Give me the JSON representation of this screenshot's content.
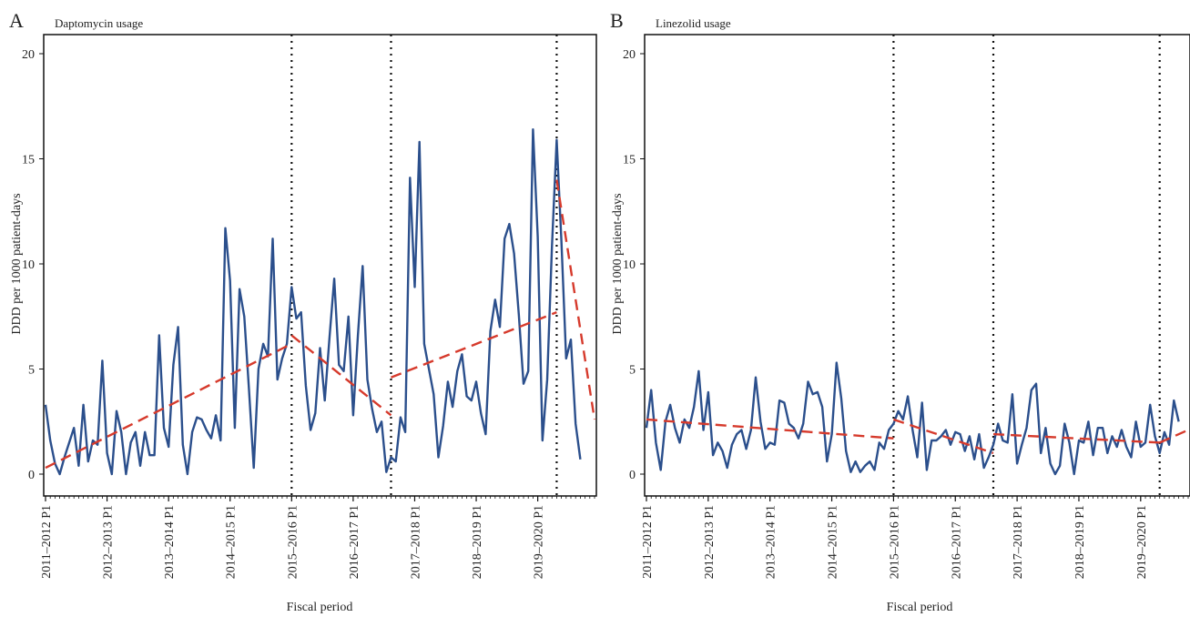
{
  "chart_data": [
    {
      "type": "line",
      "panel_label": "A",
      "title": "Daptomycin usage",
      "xlabel": "Fiscal period",
      "ylabel": "DDD per 1000 patient-days",
      "ylim": [
        0,
        20
      ],
      "y_ticks": [
        0,
        5,
        10,
        15,
        20
      ],
      "x_ticks": [
        {
          "index": 0,
          "label": "2011–2012 P1"
        },
        {
          "index": 13,
          "label": "2012–2013 P1"
        },
        {
          "index": 26,
          "label": "2013–2014 P1"
        },
        {
          "index": 39,
          "label": "2014–2015 P1"
        },
        {
          "index": 52,
          "label": "2015–2016 P1"
        },
        {
          "index": 65,
          "label": "2016–2017 P1"
        },
        {
          "index": 78,
          "label": "2017–2018 P1"
        },
        {
          "index": 91,
          "label": "2018–2019 P1"
        },
        {
          "index": 104,
          "label": "2019–2020 P1"
        }
      ],
      "x_range": [
        0,
        116
      ],
      "interventions": [
        52,
        73,
        108
      ],
      "grid": false,
      "series": [
        {
          "kind": "observed",
          "color": "#2b4f8c",
          "values": [
            3.3,
            1.6,
            0.5,
            0,
            0.8,
            1.5,
            2.2,
            0.4,
            3.3,
            0.6,
            1.6,
            1.4,
            5.4,
            1,
            0,
            3,
            2,
            0,
            1.5,
            2,
            0.4,
            2,
            0.9,
            0.9,
            6.6,
            2.2,
            1.3,
            5.2,
            7,
            1.4,
            0,
            2,
            2.7,
            2.6,
            2.1,
            1.7,
            2.8,
            1.6,
            11.7,
            9.2,
            2.2,
            8.8,
            7.5,
            4,
            0.3,
            5,
            6.2,
            5.6,
            11.2,
            4.5,
            5.5,
            6.2,
            8.9,
            7.4,
            7.7,
            4.2,
            2.1,
            2.9,
            6,
            3.5,
            6.5,
            9.3,
            5.2,
            4.9,
            7.5,
            2.8,
            6.6,
            9.9,
            4.5,
            3.1,
            2,
            2.5,
            0.1,
            0.8,
            0.6,
            2.7,
            2,
            14.1,
            8.9,
            15.8,
            6.2,
            5,
            3.8,
            0.8,
            2.3,
            4.4,
            3.2,
            4.9,
            5.7,
            3.7,
            3.5,
            4.4,
            2.9,
            1.9,
            6.8,
            8.3,
            7,
            11.2,
            11.9,
            10.5,
            7.6,
            4.3,
            4.9,
            16.4,
            11.3,
            1.6,
            4.5,
            10.8,
            15.9,
            11.1,
            5.5,
            6.4,
            2.4,
            0.7
          ]
        },
        {
          "kind": "segmented-regression",
          "color": "#d63a2c",
          "segments": [
            {
              "x": [
                0,
                52
              ],
              "y": [
                0.3,
                6.2
              ]
            },
            {
              "x": [
                52,
                73
              ],
              "y": [
                6.6,
                2.8
              ]
            },
            {
              "x": [
                73,
                108
              ],
              "y": [
                4.6,
                7.7
              ]
            },
            {
              "x": [
                108,
                116
              ],
              "y": [
                14.0,
                2.6
              ]
            }
          ]
        }
      ]
    },
    {
      "type": "line",
      "panel_label": "B",
      "title": "Linezolid usage",
      "xlabel": "Fiscal period",
      "ylabel": "DDD per 1000 patient-days",
      "ylim": [
        0,
        20
      ],
      "y_ticks": [
        0,
        5,
        10,
        15,
        20
      ],
      "x_ticks": [
        {
          "index": 0,
          "label": "2011–2012 P1"
        },
        {
          "index": 13,
          "label": "2012–2013 P1"
        },
        {
          "index": 26,
          "label": "2013–2014 P1"
        },
        {
          "index": 39,
          "label": "2014–2015 P1"
        },
        {
          "index": 52,
          "label": "2015–2016 P1"
        },
        {
          "index": 65,
          "label": "2016–2017 P1"
        },
        {
          "index": 78,
          "label": "2017–2018 P1"
        },
        {
          "index": 91,
          "label": "2018–2019 P1"
        },
        {
          "index": 104,
          "label": "2019–2020 P1"
        }
      ],
      "x_range": [
        0,
        114
      ],
      "interventions": [
        52,
        73,
        108
      ],
      "grid": false,
      "series": [
        {
          "kind": "observed",
          "color": "#2b4f8c",
          "values": [
            2.2,
            4,
            1.5,
            0.2,
            2.5,
            3.3,
            2.2,
            1.5,
            2.6,
            2.2,
            3.2,
            4.9,
            2.1,
            3.9,
            0.9,
            1.5,
            1.1,
            0.3,
            1.4,
            1.9,
            2.1,
            1.2,
            2.1,
            4.6,
            2.5,
            1.2,
            1.5,
            1.4,
            3.5,
            3.4,
            2.4,
            2.2,
            1.7,
            2.4,
            4.4,
            3.8,
            3.9,
            3.2,
            0.6,
            1.9,
            5.3,
            3.6,
            1.1,
            0.1,
            0.6,
            0.1,
            0.4,
            0.6,
            0.2,
            1.5,
            1.2,
            2.1,
            2.4,
            3,
            2.6,
            3.7,
            2.1,
            0.8,
            3.4,
            0.2,
            1.6,
            1.6,
            1.8,
            2.1,
            1.4,
            2,
            1.9,
            1.1,
            1.8,
            0.7,
            1.9,
            0.3,
            0.8,
            1.4,
            2.4,
            1.6,
            1.5,
            3.8,
            0.5,
            1.4,
            2.2,
            4,
            4.3,
            1,
            2.2,
            0.5,
            0,
            0.4,
            2.4,
            1.5,
            0,
            1.6,
            1.5,
            2.5,
            0.9,
            2.2,
            2.2,
            1,
            1.8,
            1.3,
            2.1,
            1.3,
            0.8,
            2.5,
            1.3,
            1.5,
            3.3,
            1.8,
            1,
            2,
            1.4,
            3.5,
            2.5
          ]
        },
        {
          "kind": "segmented-regression",
          "color": "#d63a2c",
          "segments": [
            {
              "x": [
                0,
                52
              ],
              "y": [
                2.6,
                1.7
              ]
            },
            {
              "x": [
                52,
                73
              ],
              "y": [
                2.6,
                1.0
              ]
            },
            {
              "x": [
                73,
                108
              ],
              "y": [
                1.9,
                1.5
              ]
            },
            {
              "x": [
                108,
                114
              ],
              "y": [
                1.5,
                2.1
              ]
            }
          ]
        }
      ]
    }
  ]
}
